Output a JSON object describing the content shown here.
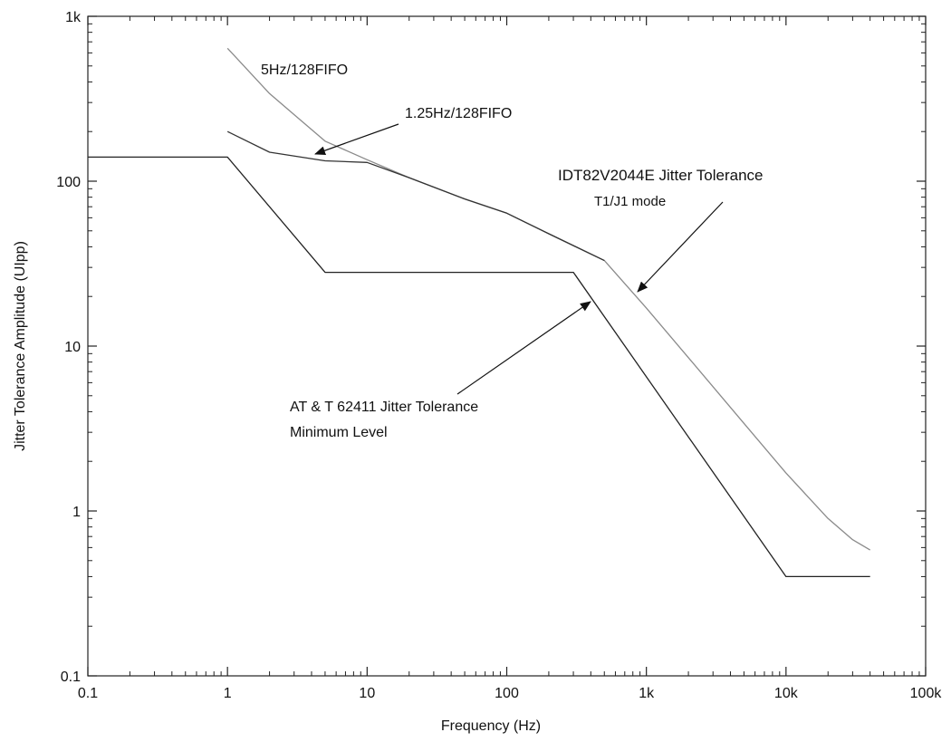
{
  "chart_data": {
    "type": "line",
    "xlabel": "Frequency (Hz)",
    "ylabel": "Jitter Tolerance Amplitude (UIpp)",
    "x_scale": "log",
    "y_scale": "log",
    "xlim": [
      0.1,
      100000
    ],
    "ylim": [
      0.1,
      1000
    ],
    "grid": false,
    "x_tick_values": [
      0.1,
      1,
      10,
      100,
      1000,
      10000,
      100000
    ],
    "x_tick_labels": [
      "0.1",
      "1",
      "10",
      "100",
      "1k",
      "10k",
      "100k"
    ],
    "y_tick_values": [
      0.1,
      1,
      10,
      100,
      1000
    ],
    "y_tick_labels": [
      "0.1",
      "1",
      "10",
      "100",
      "1k"
    ],
    "series": [
      {
        "name": "5Hz/128FIFO",
        "color": "#8a8a8a",
        "x": [
          1,
          2,
          5,
          10,
          20,
          50,
          100,
          200,
          500,
          1000,
          2000,
          5000,
          10000,
          20000,
          30000,
          40000
        ],
        "y": [
          640,
          340,
          175,
          135,
          105,
          78,
          64,
          48,
          33,
          17,
          8.5,
          3.4,
          1.7,
          0.9,
          0.67,
          0.58
        ]
      },
      {
        "name": "1.25Hz/128FIFO",
        "color": "#333333",
        "x": [
          1,
          2,
          5,
          10,
          20,
          50,
          100,
          200,
          500
        ],
        "y": [
          200,
          150,
          133,
          130,
          105,
          78,
          64,
          48,
          33
        ]
      },
      {
        "name": "AT & T 62411 Jitter Tolerance Minimum Level",
        "color": "#222222",
        "x": [
          0.1,
          1,
          5,
          300,
          10000,
          40000
        ],
        "y": [
          140,
          140,
          28,
          28,
          0.4,
          0.4
        ]
      }
    ],
    "annotations": [
      {
        "text": "5Hz/128FIFO",
        "color": "#8a8a8a"
      },
      {
        "text": "1.25Hz/128FIFO",
        "color": "#111111"
      },
      {
        "text": "IDT82V2044E Jitter Tolerance",
        "color": "#111111"
      },
      {
        "text": "T1/J1 mode",
        "color": "#111111"
      },
      {
        "text": "AT & T 62411 Jitter Tolerance",
        "color": "#111111"
      },
      {
        "text": "Minimum Level",
        "color": "#111111"
      }
    ]
  }
}
